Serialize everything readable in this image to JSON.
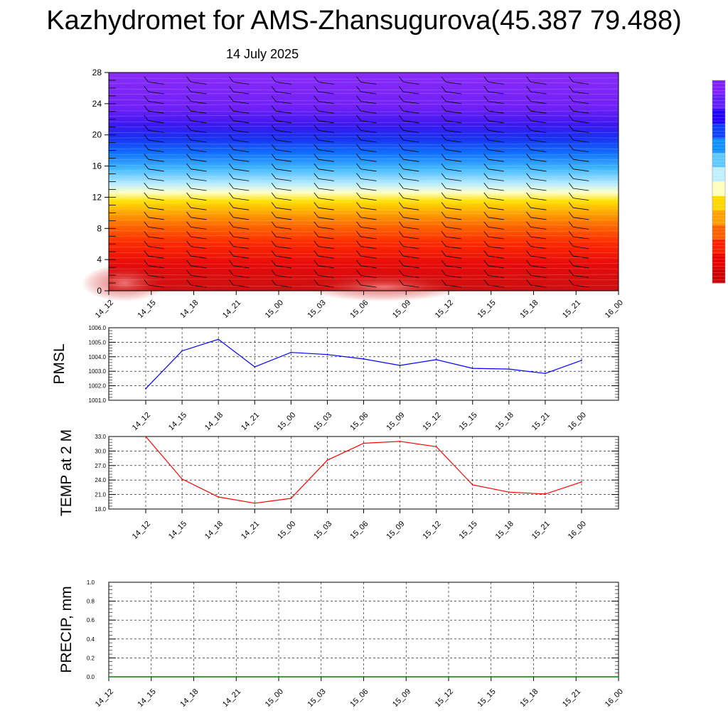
{
  "header": {
    "title": "Kazhydromet for AMS-Zhansugurova(45.387 79.488)",
    "subtitle": "14 July 2025"
  },
  "chart_data": [
    {
      "type": "heatmap",
      "title": "",
      "xlabel": "",
      "ylabel": "",
      "x_ticks": [
        "14_12",
        "14_15",
        "14_18",
        "14_21",
        "15_00",
        "15_03",
        "15_06",
        "15_09",
        "15_12",
        "15_15",
        "15_18",
        "15_21",
        "16_00"
      ],
      "y_ticks": [
        "0",
        "4",
        "8",
        "12",
        "16",
        "20",
        "24",
        "28"
      ],
      "ylim": [
        0,
        28
      ],
      "colormap": "red at bottom through orange, yellow, light blue, blue to violet at top",
      "colorbar_colors": [
        "#cc0000",
        "#e80000",
        "#ff2000",
        "#ff6000",
        "#ffa000",
        "#ffd800",
        "#ffffc0",
        "#c0f0ff",
        "#60c8ff",
        "#1090ff",
        "#1040ff",
        "#2000ff",
        "#6020ff",
        "#8020ff"
      ],
      "notes": "wind barbs drawn at each time column"
    },
    {
      "type": "line",
      "ylabel": "PMSL",
      "categories": [
        "14_12",
        "14_15",
        "14_18",
        "14_21",
        "15_00",
        "15_03",
        "15_06",
        "15_09",
        "15_12",
        "15_15",
        "15_18",
        "15_21",
        "16_00"
      ],
      "y_ticks": [
        "1001.0",
        "1002.0",
        "1003.0",
        "1004.0",
        "1005.0",
        "1006.0"
      ],
      "ylim": [
        1001.0,
        1006.0
      ],
      "color": "#0000ff",
      "values": [
        1001.8,
        1004.4,
        1005.2,
        1003.3,
        1004.3,
        1004.15,
        1003.85,
        1003.4,
        1003.8,
        1003.2,
        1003.15,
        1002.85,
        1003.75
      ]
    },
    {
      "type": "line",
      "ylabel": "TEMP at 2 M",
      "categories": [
        "14_12",
        "14_15",
        "14_18",
        "14_21",
        "15_00",
        "15_03",
        "15_06",
        "15_09",
        "15_12",
        "15_15",
        "15_18",
        "15_21",
        "16_00"
      ],
      "y_ticks": [
        "18.0",
        "21.0",
        "24.0",
        "27.0",
        "30.0",
        "33.0"
      ],
      "ylim": [
        18.0,
        33.0
      ],
      "color": "#ff0000",
      "values": [
        33.0,
        24.2,
        20.5,
        19.2,
        20.2,
        28.1,
        31.6,
        32.0,
        30.9,
        23.0,
        21.5,
        21.1,
        23.6
      ]
    },
    {
      "type": "line",
      "ylabel": "PRECIP, mm",
      "x_ticks": [
        "14_12",
        "14_15",
        "14_18",
        "14_21",
        "15_00",
        "15_03",
        "15_06",
        "15_09",
        "15_12",
        "15_15",
        "15_18",
        "15_21",
        "16_00"
      ],
      "y_ticks": [
        "0.0",
        "0.2",
        "0.4",
        "0.6",
        "0.8",
        "1.0"
      ],
      "ylim": [
        0.0,
        1.0
      ],
      "color": "#008000",
      "values": [
        0,
        0,
        0,
        0,
        0,
        0,
        0,
        0,
        0,
        0,
        0,
        0,
        0
      ]
    }
  ]
}
